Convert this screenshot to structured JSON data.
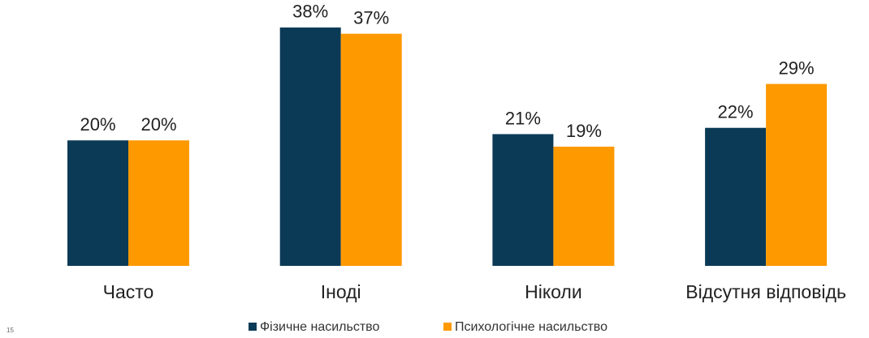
{
  "chart_data": {
    "type": "bar",
    "categories": [
      "Часто",
      "Іноді",
      "Ніколи",
      "Відсутня відповідь"
    ],
    "series": [
      {
        "name": "Фізичне насильство",
        "color": "#0b3a56",
        "values": [
          20,
          38,
          21,
          22
        ],
        "value_labels": [
          "20%",
          "38%",
          "21%",
          "22%"
        ]
      },
      {
        "name": "Психологічне насильство",
        "color": "#ff9900",
        "values": [
          20,
          37,
          19,
          29
        ],
        "value_labels": [
          "20%",
          "37%",
          "19%",
          "29%"
        ]
      }
    ],
    "page_number": "15"
  }
}
